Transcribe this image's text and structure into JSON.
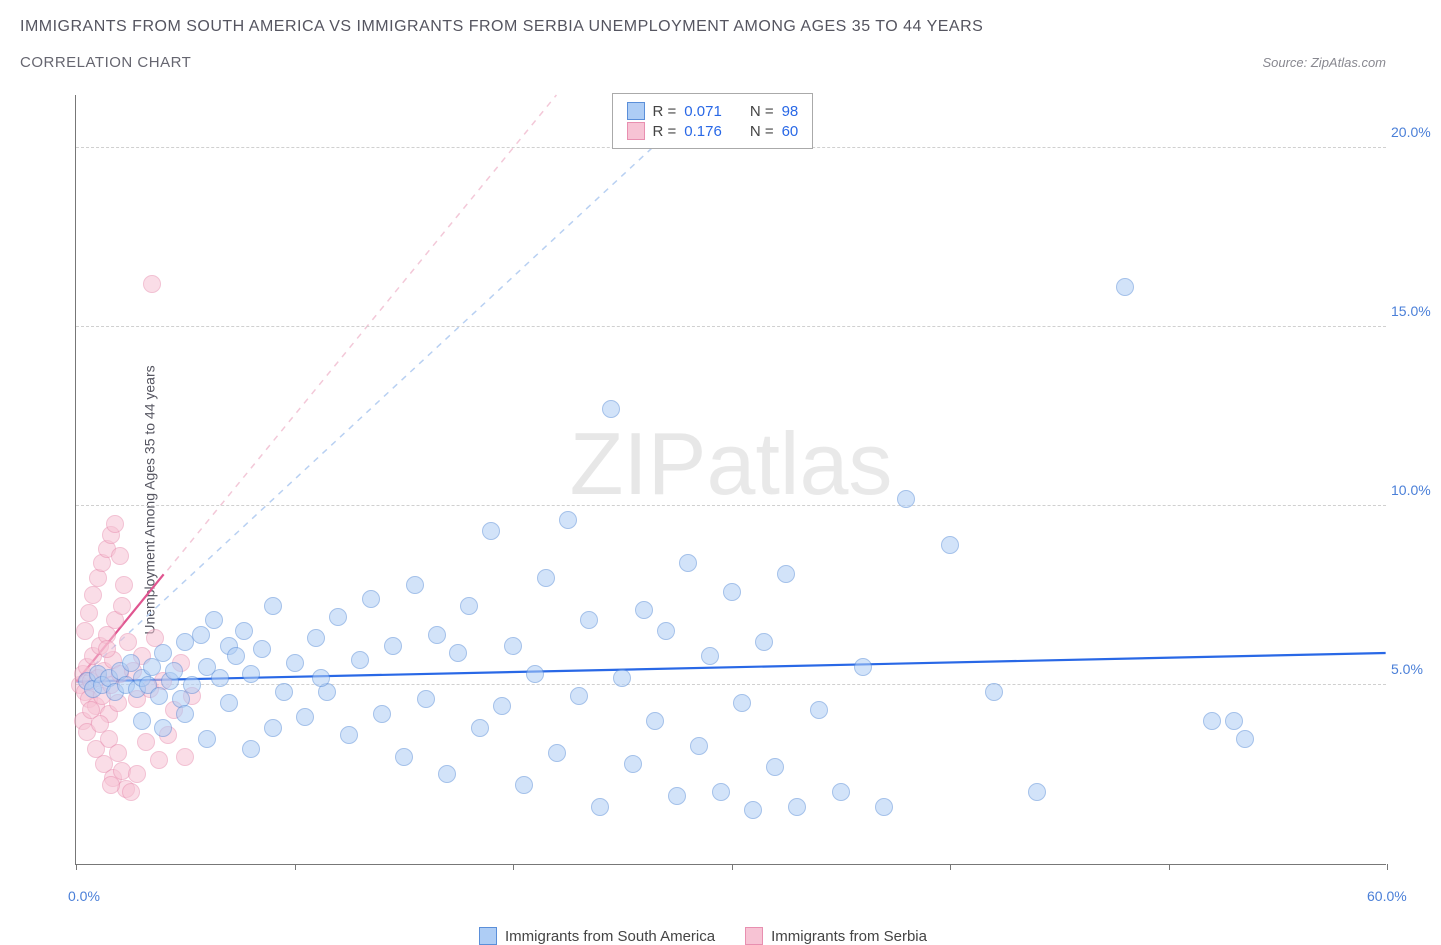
{
  "title": "IMMIGRANTS FROM SOUTH AMERICA VS IMMIGRANTS FROM SERBIA UNEMPLOYMENT AMONG AGES 35 TO 44 YEARS",
  "subtitle": "CORRELATION CHART",
  "source": "Source: ZipAtlas.com",
  "y_label": "Unemployment Among Ages 35 to 44 years",
  "watermark_left": "ZIP",
  "watermark_right": "atlas",
  "chart": {
    "type": "scatter",
    "xlim": [
      0,
      60
    ],
    "ylim": [
      0,
      21.5
    ],
    "x_ticks": [
      0,
      10,
      20,
      30,
      40,
      50,
      60
    ],
    "x_tick_labels": {
      "0": "0.0%",
      "60": "60.0%"
    },
    "y_grid": [
      5,
      10,
      15,
      20
    ],
    "y_tick_labels": {
      "5": "5.0%",
      "10": "10.0%",
      "15": "15.0%",
      "20": "20.0%"
    },
    "background_color": "#ffffff",
    "grid_color": "#d0d0d0",
    "axis_color": "#777777",
    "tick_label_color": "#4a7fd8",
    "marker_radius": 9,
    "marker_opacity": 0.55,
    "series": [
      {
        "name": "Immigrants from South America",
        "fill": "#aecdf5",
        "stroke": "#5b8fd9",
        "R": "0.071",
        "N": "98",
        "trend": {
          "x1": 0,
          "y1": 5.1,
          "x2": 60,
          "y2": 5.9,
          "color": "#2968e6",
          "width": 2.2
        },
        "trend_dash": {
          "x1": 0,
          "y1": 5.1,
          "x2": 29,
          "y2": 21.5,
          "color": "#b8d0f2",
          "width": 1.5
        },
        "points": [
          [
            0.5,
            5.1
          ],
          [
            0.8,
            4.9
          ],
          [
            1.0,
            5.3
          ],
          [
            1.2,
            5.0
          ],
          [
            1.5,
            5.2
          ],
          [
            1.8,
            4.8
          ],
          [
            2.0,
            5.4
          ],
          [
            2.3,
            5.0
          ],
          [
            2.5,
            5.6
          ],
          [
            2.8,
            4.9
          ],
          [
            3.0,
            5.2
          ],
          [
            3.3,
            5.0
          ],
          [
            3.5,
            5.5
          ],
          [
            3.8,
            4.7
          ],
          [
            4.0,
            5.9
          ],
          [
            4.3,
            5.1
          ],
          [
            4.5,
            5.4
          ],
          [
            4.8,
            4.6
          ],
          [
            5.0,
            6.2
          ],
          [
            5.3,
            5.0
          ],
          [
            5.7,
            6.4
          ],
          [
            6.0,
            5.5
          ],
          [
            6.3,
            6.8
          ],
          [
            6.6,
            5.2
          ],
          [
            7.0,
            6.1
          ],
          [
            7.3,
            5.8
          ],
          [
            7.7,
            6.5
          ],
          [
            8.0,
            5.3
          ],
          [
            8.5,
            6.0
          ],
          [
            9.0,
            7.2
          ],
          [
            3.0,
            4.0
          ],
          [
            4.0,
            3.8
          ],
          [
            5.0,
            4.2
          ],
          [
            6.0,
            3.5
          ],
          [
            7.0,
            4.5
          ],
          [
            8.0,
            3.2
          ],
          [
            9.0,
            3.8
          ],
          [
            10.0,
            5.6
          ],
          [
            10.5,
            4.1
          ],
          [
            11.0,
            6.3
          ],
          [
            11.5,
            4.8
          ],
          [
            12.0,
            6.9
          ],
          [
            12.5,
            3.6
          ],
          [
            13.0,
            5.7
          ],
          [
            13.5,
            7.4
          ],
          [
            14.0,
            4.2
          ],
          [
            14.5,
            6.1
          ],
          [
            15.0,
            3.0
          ],
          [
            15.5,
            7.8
          ],
          [
            16.0,
            4.6
          ],
          [
            16.5,
            6.4
          ],
          [
            17.0,
            2.5
          ],
          [
            17.5,
            5.9
          ],
          [
            18.0,
            7.2
          ],
          [
            18.5,
            3.8
          ],
          [
            19.0,
            9.3
          ],
          [
            19.5,
            4.4
          ],
          [
            20.0,
            6.1
          ],
          [
            20.5,
            2.2
          ],
          [
            21.0,
            5.3
          ],
          [
            21.5,
            8.0
          ],
          [
            22.0,
            3.1
          ],
          [
            22.5,
            9.6
          ],
          [
            23.0,
            4.7
          ],
          [
            23.5,
            6.8
          ],
          [
            24.0,
            1.6
          ],
          [
            24.5,
            12.7
          ],
          [
            25.0,
            5.2
          ],
          [
            25.5,
            2.8
          ],
          [
            26.0,
            7.1
          ],
          [
            26.5,
            4.0
          ],
          [
            27.0,
            6.5
          ],
          [
            27.5,
            1.9
          ],
          [
            28.0,
            8.4
          ],
          [
            28.5,
            3.3
          ],
          [
            29.0,
            5.8
          ],
          [
            29.5,
            2.0
          ],
          [
            30.0,
            7.6
          ],
          [
            30.5,
            4.5
          ],
          [
            31.0,
            1.5
          ],
          [
            31.5,
            6.2
          ],
          [
            32.0,
            2.7
          ],
          [
            32.5,
            8.1
          ],
          [
            33.0,
            1.6
          ],
          [
            34.0,
            4.3
          ],
          [
            35.0,
            2.0
          ],
          [
            36.0,
            5.5
          ],
          [
            37.0,
            1.6
          ],
          [
            38.0,
            10.2
          ],
          [
            40.0,
            8.9
          ],
          [
            42.0,
            4.8
          ],
          [
            44.0,
            2.0
          ],
          [
            48.0,
            16.1
          ],
          [
            52.0,
            4.0
          ],
          [
            53.0,
            4.0
          ],
          [
            53.5,
            3.5
          ],
          [
            9.5,
            4.8
          ],
          [
            11.2,
            5.2
          ]
        ]
      },
      {
        "name": "Immigrants from Serbia",
        "fill": "#f7c3d4",
        "stroke": "#e88fb0",
        "R": "0.176",
        "N": "60",
        "trend": {
          "x1": 0,
          "y1": 5.1,
          "x2": 4.0,
          "y2": 8.1,
          "color": "#e05590",
          "width": 2.2
        },
        "trend_dash": {
          "x1": 0,
          "y1": 5.1,
          "x2": 22,
          "y2": 21.5,
          "color": "#f3c8d8",
          "width": 1.5
        },
        "points": [
          [
            0.2,
            5.0
          ],
          [
            0.3,
            5.3
          ],
          [
            0.4,
            4.8
          ],
          [
            0.5,
            5.5
          ],
          [
            0.6,
            4.6
          ],
          [
            0.7,
            5.1
          ],
          [
            0.8,
            5.8
          ],
          [
            0.9,
            4.4
          ],
          [
            1.0,
            5.2
          ],
          [
            1.1,
            6.1
          ],
          [
            1.2,
            4.7
          ],
          [
            1.3,
            5.4
          ],
          [
            1.4,
            6.4
          ],
          [
            1.5,
            4.2
          ],
          [
            1.6,
            5.0
          ],
          [
            1.7,
            5.7
          ],
          [
            1.8,
            6.8
          ],
          [
            1.9,
            4.5
          ],
          [
            2.0,
            5.3
          ],
          [
            2.1,
            7.2
          ],
          [
            0.3,
            4.0
          ],
          [
            0.5,
            3.7
          ],
          [
            0.7,
            4.3
          ],
          [
            0.9,
            3.2
          ],
          [
            1.1,
            3.9
          ],
          [
            1.3,
            2.8
          ],
          [
            1.5,
            3.5
          ],
          [
            1.7,
            2.4
          ],
          [
            1.9,
            3.1
          ],
          [
            2.1,
            2.6
          ],
          [
            0.4,
            6.5
          ],
          [
            0.6,
            7.0
          ],
          [
            0.8,
            7.5
          ],
          [
            1.0,
            8.0
          ],
          [
            1.2,
            8.4
          ],
          [
            1.4,
            8.8
          ],
          [
            1.6,
            9.2
          ],
          [
            1.8,
            9.5
          ],
          [
            2.0,
            8.6
          ],
          [
            2.2,
            7.8
          ],
          [
            2.4,
            6.2
          ],
          [
            2.6,
            5.4
          ],
          [
            2.8,
            4.6
          ],
          [
            3.0,
            5.8
          ],
          [
            3.2,
            3.4
          ],
          [
            3.4,
            4.9
          ],
          [
            3.6,
            6.3
          ],
          [
            3.8,
            2.9
          ],
          [
            4.0,
            5.1
          ],
          [
            4.2,
            3.6
          ],
          [
            4.5,
            4.3
          ],
          [
            4.8,
            5.6
          ],
          [
            5.0,
            3.0
          ],
          [
            5.3,
            4.7
          ],
          [
            2.3,
            2.1
          ],
          [
            2.5,
            2.0
          ],
          [
            2.8,
            2.5
          ],
          [
            1.6,
            2.2
          ],
          [
            3.5,
            16.2
          ],
          [
            1.4,
            6.0
          ]
        ]
      }
    ]
  },
  "stats_box": {
    "R_label": "R =",
    "N_label": "N ="
  },
  "legend": {
    "series1": "Immigrants from South America",
    "series2": "Immigrants from Serbia"
  }
}
